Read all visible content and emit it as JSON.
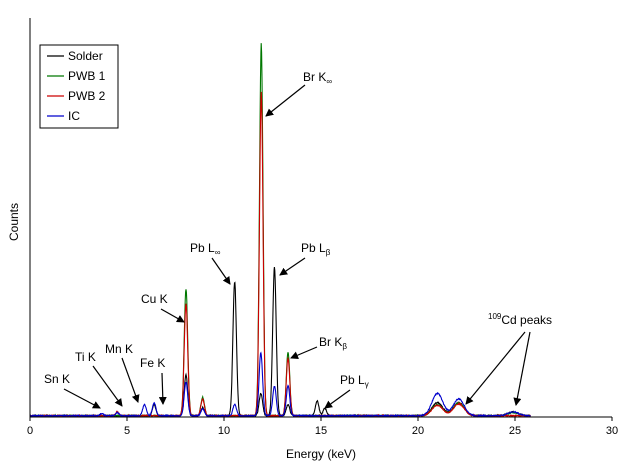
{
  "chart_data": {
    "type": "line",
    "xlabel": "Energy (keV)",
    "ylabel": "Counts",
    "xlim": [
      0,
      30
    ],
    "ylim": [
      0,
      1000
    ],
    "xticks": [
      "0",
      "5",
      "10",
      "15",
      "20",
      "25",
      "30"
    ],
    "grid": false,
    "legend_position": "top-left",
    "series": [
      {
        "name": "Solder",
        "color": "#000000",
        "peaks": [
          {
            "x": 6.4,
            "h": 30
          },
          {
            "x": 8.04,
            "h": 110
          },
          {
            "x": 8.9,
            "h": 22
          },
          {
            "x": 10.55,
            "h": 360
          },
          {
            "x": 11.9,
            "h": 60
          },
          {
            "x": 12.6,
            "h": 400
          },
          {
            "x": 13.3,
            "h": 30
          },
          {
            "x": 14.8,
            "h": 40
          },
          {
            "x": 15.2,
            "h": 20
          },
          {
            "x": 21.0,
            "h": 35
          },
          {
            "x": 22.1,
            "h": 35
          },
          {
            "x": 24.9,
            "h": 10
          }
        ]
      },
      {
        "name": "PWB 1",
        "color": "#007700",
        "peaks": [
          {
            "x": 8.04,
            "h": 340
          },
          {
            "x": 8.9,
            "h": 50
          },
          {
            "x": 11.92,
            "h": 1000
          },
          {
            "x": 13.3,
            "h": 170
          },
          {
            "x": 21.0,
            "h": 30
          },
          {
            "x": 22.1,
            "h": 35
          },
          {
            "x": 24.9,
            "h": 8
          }
        ]
      },
      {
        "name": "PWB 2",
        "color": "#cc0000",
        "peaks": [
          {
            "x": 4.5,
            "h": 10
          },
          {
            "x": 8.04,
            "h": 300
          },
          {
            "x": 8.9,
            "h": 45
          },
          {
            "x": 11.92,
            "h": 870
          },
          {
            "x": 13.3,
            "h": 155
          },
          {
            "x": 21.0,
            "h": 28
          },
          {
            "x": 22.1,
            "h": 32
          }
        ]
      },
      {
        "name": "IC",
        "color": "#0000cc",
        "peaks": [
          {
            "x": 3.7,
            "h": 6
          },
          {
            "x": 4.5,
            "h": 8
          },
          {
            "x": 5.9,
            "h": 30
          },
          {
            "x": 6.4,
            "h": 35
          },
          {
            "x": 8.04,
            "h": 90
          },
          {
            "x": 8.9,
            "h": 18
          },
          {
            "x": 10.55,
            "h": 30
          },
          {
            "x": 11.9,
            "h": 170
          },
          {
            "x": 12.6,
            "h": 80
          },
          {
            "x": 13.3,
            "h": 80
          },
          {
            "x": 21.0,
            "h": 60
          },
          {
            "x": 22.1,
            "h": 45
          },
          {
            "x": 24.9,
            "h": 10
          }
        ]
      }
    ],
    "annotations": [
      {
        "text": "Br K",
        "sub": "∞",
        "x": 12.0,
        "y": 820
      },
      {
        "text": "Pb L",
        "sub": "∞",
        "x": 10.55,
        "y": 365
      },
      {
        "text": "Pb L",
        "sub": "β",
        "x": 12.6,
        "y": 400
      },
      {
        "text": "Cu K",
        "sub": "",
        "x": 8.04,
        "y": 260
      },
      {
        "text": "Br K",
        "sub": "β",
        "x": 13.3,
        "y": 165
      },
      {
        "text": "Mn K",
        "sub": "",
        "x": 5.9,
        "y": 20
      },
      {
        "text": "Ti K",
        "sub": "",
        "x": 4.5,
        "y": 15
      },
      {
        "text": "Fe K",
        "sub": "",
        "x": 6.4,
        "y": 25
      },
      {
        "text": "Sn K",
        "sub": "",
        "x": 3.7,
        "y": 12
      },
      {
        "text": "Pb L",
        "sub": "γ",
        "x": 15.0,
        "y": 35
      },
      {
        "text": "Cd peaks",
        "sup": "109",
        "x": 22.1,
        "y": 40
      },
      {
        "text": "",
        "sup": "",
        "x": 24.9,
        "y": 15
      }
    ]
  }
}
